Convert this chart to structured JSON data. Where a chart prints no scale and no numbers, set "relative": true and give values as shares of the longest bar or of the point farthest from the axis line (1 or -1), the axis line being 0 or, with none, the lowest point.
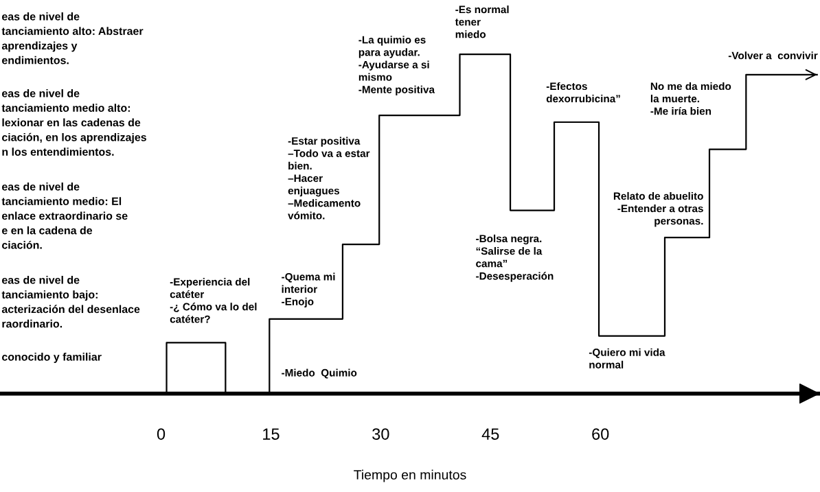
{
  "chart_data": {
    "type": "step",
    "relative": true,
    "xlabel": "Tiempo en minutos",
    "xlim": [
      -22,
      90
    ],
    "xticks": [
      0,
      15,
      30,
      45,
      60
    ],
    "series": [
      {
        "color": "#000000",
        "x": [
          0.75,
          0.75,
          8.8,
          8.8
        ],
        "values": [
          0,
          0.15,
          0.15,
          0
        ]
      },
      {
        "color": "#000000",
        "x": [
          14.8,
          14.8,
          24.8,
          29.8,
          40.8,
          47.7,
          53.7,
          59.8,
          68.8,
          74.9,
          79.9,
          89.6
        ],
        "values": [
          0,
          0.22,
          0.44,
          0.82,
          1.0,
          0.54,
          0.8,
          0.17,
          0.46,
          0.72,
          0.94,
          0.94
        ]
      }
    ],
    "annotations": [
      "eas de nivel de\ntanciamiento alto: Abstraer\naprendizajes y\nendimientos.",
      "eas de nivel de\ntanciamiento medio alto:\nlexionar en las cadenas de\nciación, en los aprendizajes\nn los entendimientos.",
      "eas de nivel de\ntanciamiento medio: El\nenlace extraordinario se\ne en la cadena de\nciación.",
      "eas de nivel de\ntanciamiento bajo:\nacterización del desenlace\nraordinario.",
      "conocido y familiar",
      "-Experiencia del\ncatéter\n-¿ Cómo va lo del\ncatéter?",
      "-Miedo  Quimio",
      "-Quema mi\ninterior\n-Enojo",
      "-Estar positiva\n–Todo va a estar\nbien.\n–Hacer\nenjuagues\n–Medicamento\nvómito.",
      "-La quimio es\npara ayudar.\n-Ayudarse a si\nmismo\n-Mente positiva",
      "-Es normal\ntener\nmiedo",
      "-Efectos\ndexorrubicina”",
      "-Bolsa negra.\n“Salirse de la\ncama”\n-Desesperación",
      "-Quiero mi vida\nnormal",
      "No me da miedo\nla muerte.\n-Me iría bien",
      "Relato de abuelito\n-Entender a otras\npersonas.",
      "-Volver a  convivir"
    ]
  }
}
